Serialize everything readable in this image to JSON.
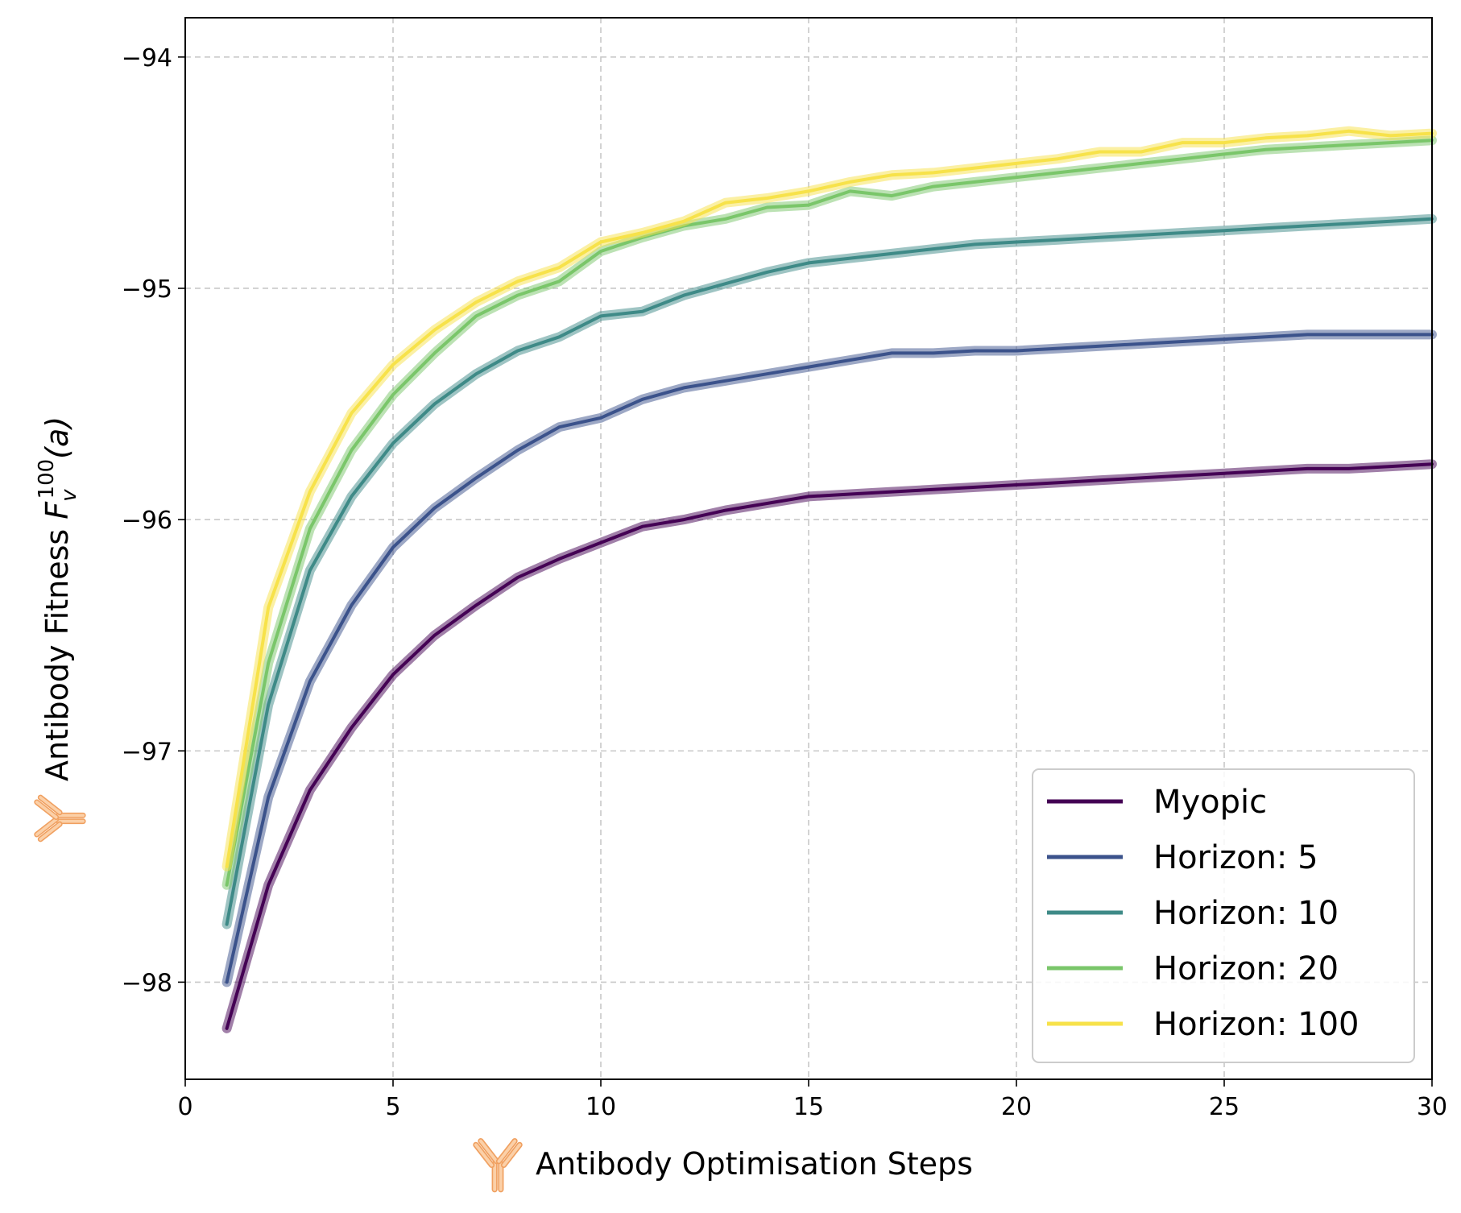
{
  "chart_data": {
    "type": "line",
    "xlabel": "Antibody Optimisation Steps",
    "ylabel": {
      "prefix": "Antibody Fitness ",
      "symbol": "F",
      "subscript": "v",
      "superscript": "100",
      "argument": "(a)"
    },
    "xlim": [
      0,
      30
    ],
    "ylim": [
      -98.42,
      -93.83
    ],
    "xticks": [
      0,
      5,
      10,
      15,
      20,
      25,
      30
    ],
    "yticks": [
      -94,
      -95,
      -96,
      -97,
      -98
    ],
    "xtick_labels": [
      "0",
      "5",
      "10",
      "15",
      "20",
      "25",
      "30"
    ],
    "ytick_labels": [
      "−94",
      "−95",
      "−96",
      "−97",
      "−98"
    ],
    "grid": true,
    "legend_position": "bottom-right",
    "label_icon": "antibody-icon",
    "series": [
      {
        "name": "Myopic",
        "color": "#440154",
        "x": [
          1,
          2,
          3,
          4,
          5,
          6,
          7,
          8,
          9,
          10,
          11,
          12,
          13,
          14,
          15,
          16,
          17,
          18,
          19,
          20,
          21,
          22,
          23,
          24,
          25,
          26,
          27,
          28,
          29,
          30
        ],
        "y": [
          -98.2,
          -97.58,
          -97.17,
          -96.9,
          -96.67,
          -96.5,
          -96.37,
          -96.25,
          -96.17,
          -96.1,
          -96.03,
          -96.0,
          -95.96,
          -95.93,
          -95.9,
          -95.89,
          -95.88,
          -95.87,
          -95.86,
          -95.85,
          -95.84,
          -95.83,
          -95.82,
          -95.81,
          -95.8,
          -95.79,
          -95.78,
          -95.78,
          -95.77,
          -95.76
        ]
      },
      {
        "name": "Horizon: 5",
        "color": "#3b528b",
        "x": [
          1,
          2,
          3,
          4,
          5,
          6,
          7,
          8,
          9,
          10,
          11,
          12,
          13,
          14,
          15,
          16,
          17,
          18,
          19,
          20,
          21,
          22,
          23,
          24,
          25,
          26,
          27,
          28,
          29,
          30
        ],
        "y": [
          -98.0,
          -97.2,
          -96.7,
          -96.37,
          -96.12,
          -95.95,
          -95.82,
          -95.7,
          -95.6,
          -95.56,
          -95.48,
          -95.43,
          -95.4,
          -95.37,
          -95.34,
          -95.31,
          -95.28,
          -95.28,
          -95.27,
          -95.27,
          -95.26,
          -95.25,
          -95.24,
          -95.23,
          -95.22,
          -95.21,
          -95.2,
          -95.2,
          -95.2,
          -95.2
        ]
      },
      {
        "name": "Horizon: 10",
        "color": "#3e8a87",
        "x": [
          1,
          2,
          3,
          4,
          5,
          6,
          7,
          8,
          9,
          10,
          11,
          12,
          13,
          14,
          15,
          16,
          17,
          18,
          19,
          20,
          21,
          22,
          23,
          24,
          25,
          26,
          27,
          28,
          29,
          30
        ],
        "y": [
          -97.75,
          -96.8,
          -96.22,
          -95.9,
          -95.67,
          -95.5,
          -95.37,
          -95.27,
          -95.21,
          -95.12,
          -95.1,
          -95.03,
          -94.98,
          -94.93,
          -94.89,
          -94.87,
          -94.85,
          -94.83,
          -94.81,
          -94.8,
          -94.79,
          -94.78,
          -94.77,
          -94.76,
          -94.75,
          -94.74,
          -94.73,
          -94.72,
          -94.71,
          -94.7
        ]
      },
      {
        "name": "Horizon: 20",
        "color": "#7ac66a",
        "x": [
          1,
          2,
          3,
          4,
          5,
          6,
          7,
          8,
          9,
          10,
          11,
          12,
          13,
          14,
          15,
          16,
          17,
          18,
          19,
          20,
          21,
          22,
          23,
          24,
          25,
          26,
          27,
          28,
          29,
          30
        ],
        "y": [
          -97.58,
          -96.62,
          -96.04,
          -95.7,
          -95.46,
          -95.28,
          -95.12,
          -95.03,
          -94.97,
          -94.84,
          -94.78,
          -94.73,
          -94.7,
          -94.65,
          -94.64,
          -94.58,
          -94.6,
          -94.56,
          -94.54,
          -94.52,
          -94.5,
          -94.48,
          -94.46,
          -94.44,
          -94.42,
          -94.4,
          -94.39,
          -94.38,
          -94.37,
          -94.36
        ]
      },
      {
        "name": "Horizon: 100",
        "color": "#f7e24a",
        "x": [
          1,
          2,
          3,
          4,
          5,
          6,
          7,
          8,
          9,
          10,
          11,
          12,
          13,
          14,
          15,
          16,
          17,
          18,
          19,
          20,
          21,
          22,
          23,
          24,
          25,
          26,
          27,
          28,
          29,
          30
        ],
        "y": [
          -97.5,
          -96.38,
          -95.88,
          -95.54,
          -95.33,
          -95.18,
          -95.06,
          -94.97,
          -94.91,
          -94.8,
          -94.76,
          -94.71,
          -94.63,
          -94.61,
          -94.58,
          -94.54,
          -94.51,
          -94.5,
          -94.48,
          -94.46,
          -94.44,
          -94.41,
          -94.41,
          -94.37,
          -94.37,
          -94.35,
          -94.34,
          -94.32,
          -94.34,
          -94.33
        ]
      }
    ]
  }
}
